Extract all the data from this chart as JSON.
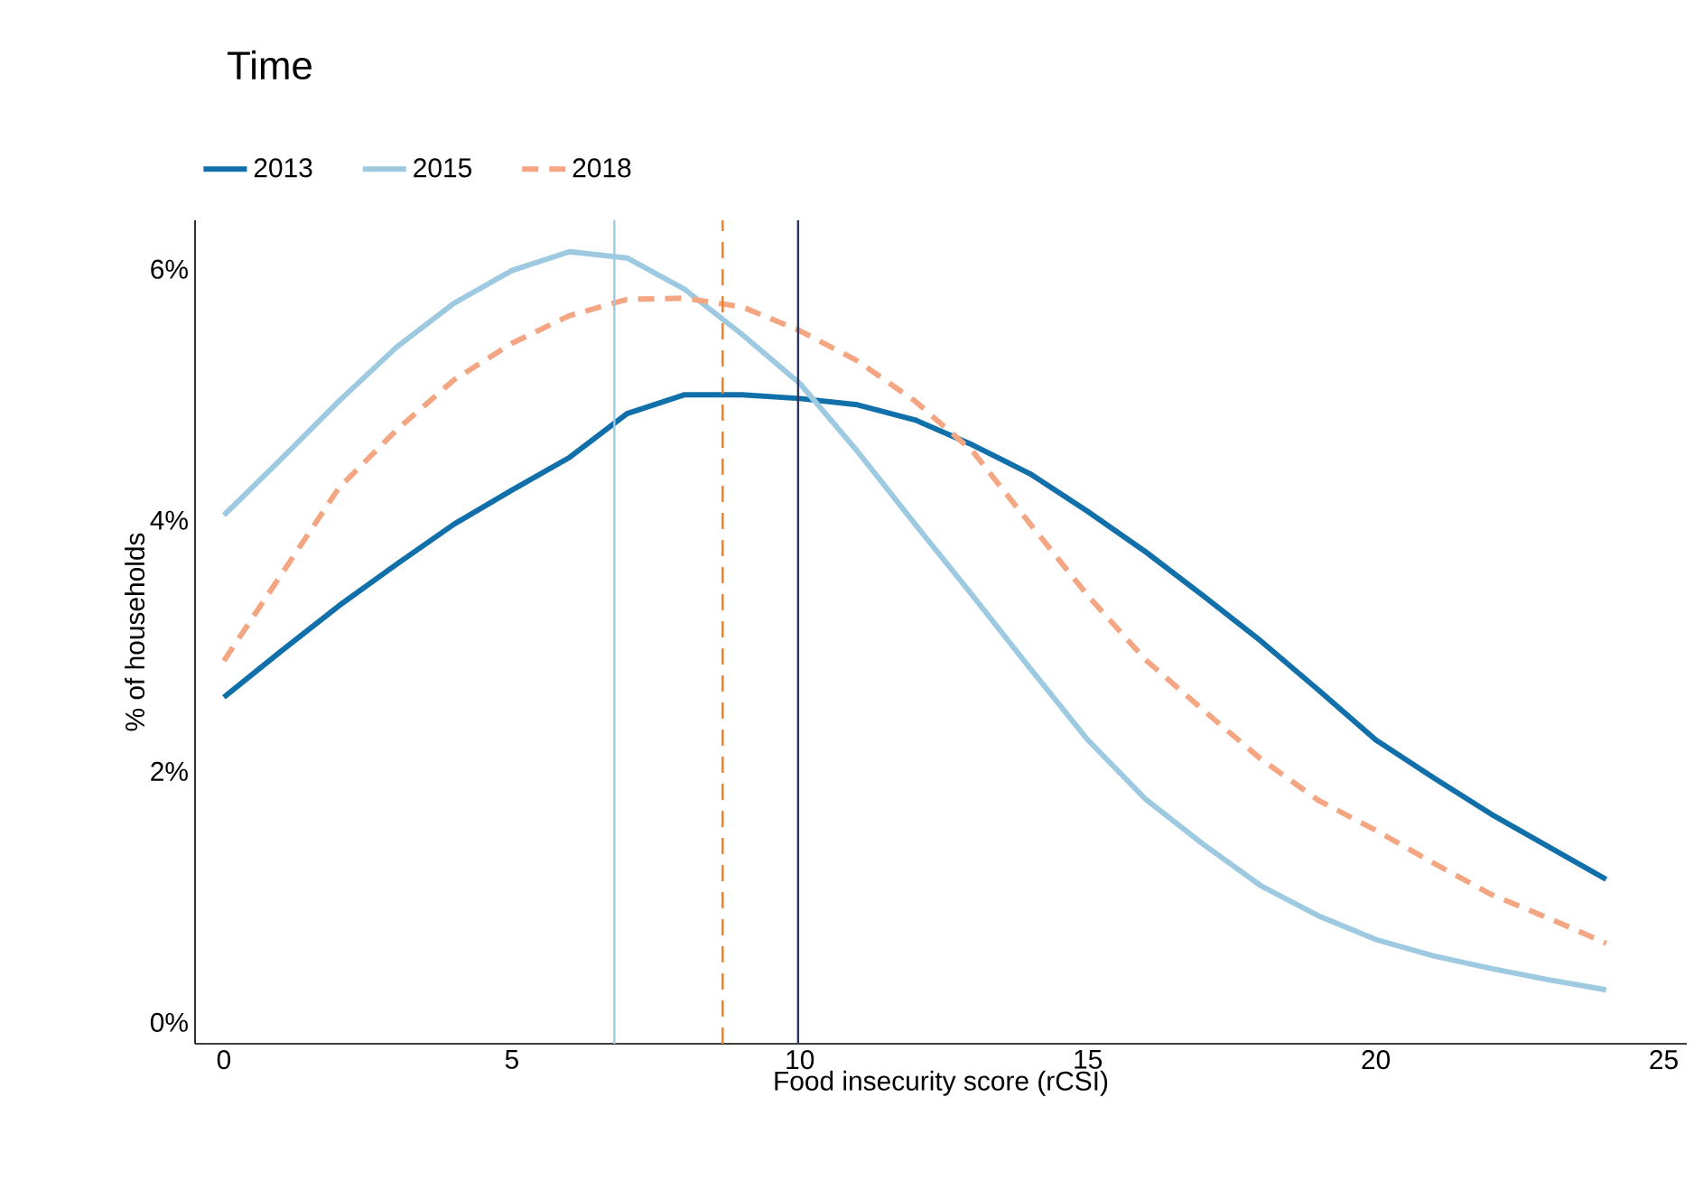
{
  "chart_data": {
    "type": "line",
    "legend_title": "Time",
    "xlabel": "Food insecurity score (rCSI)",
    "ylabel": "% of households",
    "x": [
      0,
      1,
      2,
      3,
      4,
      5,
      6,
      7,
      8,
      9,
      10,
      11,
      12,
      13,
      14,
      15,
      16,
      17,
      18,
      19,
      20,
      21,
      22,
      23,
      24
    ],
    "series": [
      {
        "name": "2013",
        "color": "#1170aa",
        "line_style": "solid",
        "values": [
          2.59,
          2.96,
          3.32,
          3.65,
          3.97,
          4.24,
          4.5,
          4.85,
          5.0,
          5.0,
          4.97,
          4.92,
          4.8,
          4.6,
          4.37,
          4.07,
          3.75,
          3.4,
          3.04,
          2.65,
          2.25,
          1.95,
          1.66,
          1.4,
          1.14
        ]
      },
      {
        "name": "2015",
        "color": "#9ecae1",
        "line_style": "solid",
        "values": [
          4.04,
          4.49,
          4.95,
          5.38,
          5.73,
          5.99,
          6.14,
          6.09,
          5.84,
          5.48,
          5.09,
          4.55,
          3.97,
          3.4,
          2.82,
          2.25,
          1.78,
          1.42,
          1.09,
          0.85,
          0.66,
          0.53,
          0.43,
          0.34,
          0.26
        ]
      },
      {
        "name": "2018",
        "color": "#f4a582",
        "line_style": "dashed",
        "values": [
          2.88,
          3.57,
          4.26,
          4.72,
          5.12,
          5.41,
          5.63,
          5.76,
          5.77,
          5.7,
          5.51,
          5.27,
          4.95,
          4.55,
          3.97,
          3.4,
          2.89,
          2.49,
          2.1,
          1.77,
          1.53,
          1.27,
          1.02,
          0.83,
          0.63
        ]
      }
    ],
    "ref_lines": [
      {
        "axis": "x",
        "value": 6.78,
        "color": "#9ecae1",
        "line_style": "solid"
      },
      {
        "axis": "x",
        "value": 8.66,
        "color": "#f47d20",
        "line_style": "dashed"
      },
      {
        "axis": "x",
        "value": 9.97,
        "color": "#2c3560",
        "line_style": "solid"
      }
    ],
    "xlim": [
      -0.5,
      25.4
    ],
    "ylim": [
      -0.17,
      6.39
    ],
    "xticks": [
      0,
      5,
      10,
      15,
      20,
      25
    ],
    "yticks": [
      {
        "value": 0,
        "label": "0%"
      },
      {
        "value": 2,
        "label": "2%"
      },
      {
        "value": 4,
        "label": "4%"
      },
      {
        "value": 6,
        "label": "6%"
      }
    ],
    "grid": false,
    "legend": "top left",
    "marker": "none"
  }
}
